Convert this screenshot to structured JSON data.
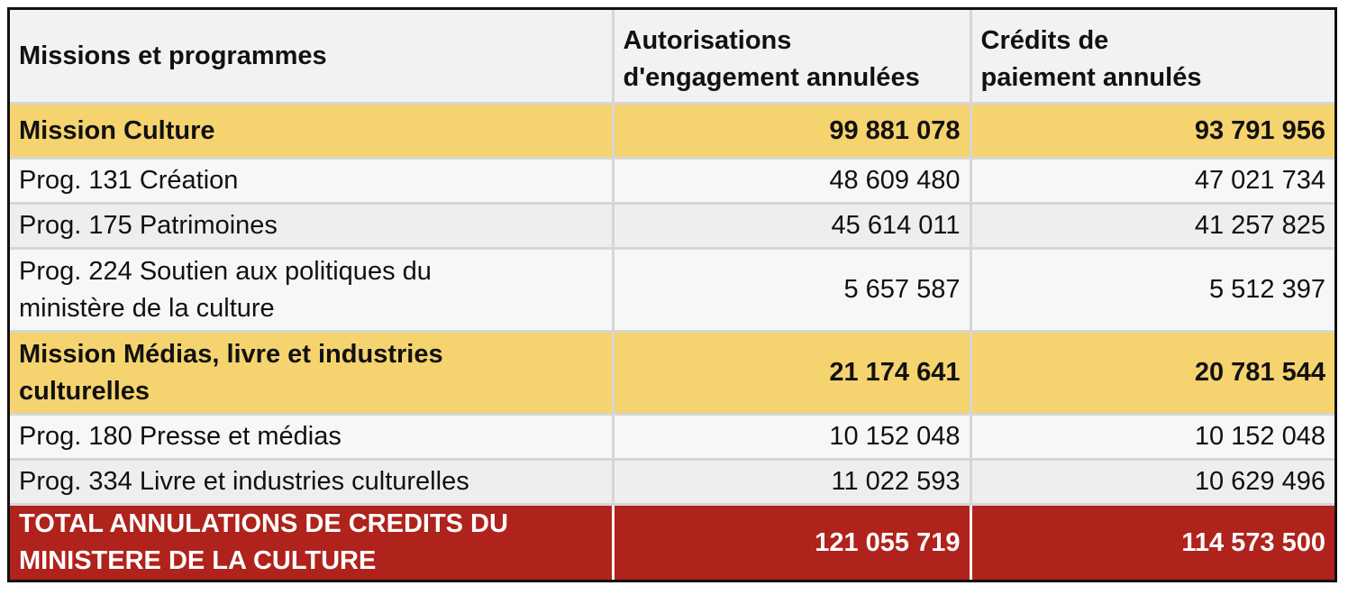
{
  "table": {
    "headers": {
      "col1": "Missions et programmes",
      "col2_line1": "Autorisations",
      "col2_line2": "d'engagement annulées",
      "col3_line1": "Crédits de",
      "col3_line2": "paiement annulés"
    },
    "rows": [
      {
        "label": "Mission Culture",
        "ae": "99 881 078",
        "cp": "93 791 956"
      },
      {
        "label": "Prog. 131 Création",
        "ae": "48 609 480",
        "cp": "47 021 734"
      },
      {
        "label": "Prog. 175 Patrimoines",
        "ae": "45 614 011",
        "cp": "41 257 825"
      },
      {
        "label_line1": "Prog. 224 Soutien aux politiques du",
        "label_line2": "ministère de la culture",
        "ae": "5 657 587",
        "cp": "5 512 397"
      },
      {
        "label_line1": "Mission Médias, livre et industries",
        "label_line2": "culturelles",
        "ae": "21 174 641",
        "cp": "20 781 544"
      },
      {
        "label": "Prog. 180 Presse et médias",
        "ae": "10 152 048",
        "cp": "10 152 048"
      },
      {
        "label": "Prog. 334 Livre et industries culturelles",
        "ae": "11 022 593",
        "cp": "10 629 496"
      }
    ],
    "total": {
      "label_line1": "TOTAL ANNULATIONS DE CREDITS DU",
      "label_line2": "MINISTERE DE LA CULTURE",
      "ae": "121 055 719",
      "cp": "114 573 500"
    }
  },
  "colors": {
    "mission_row": "#f5d36e",
    "total_row": "#b0221c",
    "header_row": "#f2f2f2"
  }
}
